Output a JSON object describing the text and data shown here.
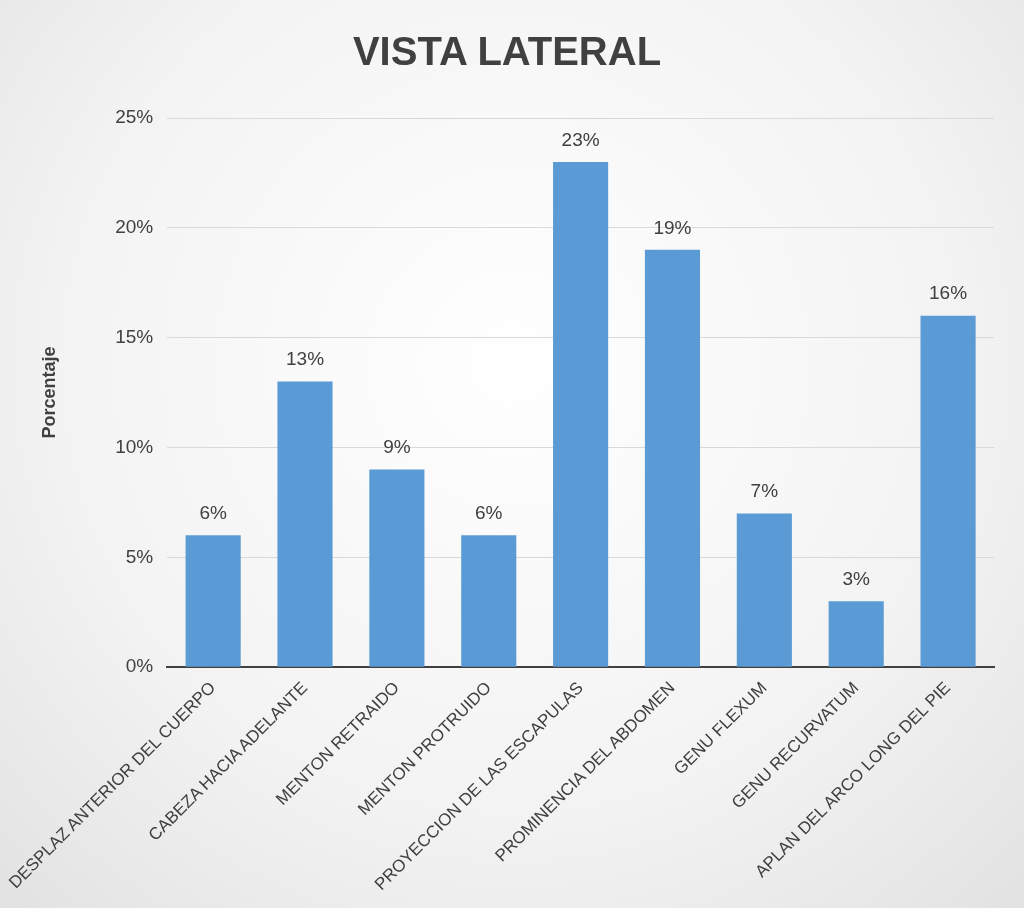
{
  "chart_data": {
    "type": "bar",
    "title": "VISTA LATERAL",
    "ylabel": "Porcentaje",
    "categories": [
      "DESPLAZ ANTERIOR DEL CUERPO",
      "CABEZA HACIA ADELANTE",
      "MENTON RETRAIDO",
      "MENTON PROTRUIDO",
      "PROYECCION DE LAS ESCAPULAS",
      "PROMINENCIA DEL ABDOMEN",
      "GENU FLEXUM",
      "GENU RECURVATUM",
      "APLAN DEL ARCO LONG DEL PIE"
    ],
    "values": [
      6,
      13,
      9,
      6,
      23,
      19,
      7,
      3,
      16
    ],
    "color": "#5b9bd5",
    "ylim": [
      0,
      25
    ],
    "yticks": [
      {
        "value": 0,
        "label": "0%"
      },
      {
        "value": 5,
        "label": "5%"
      },
      {
        "value": 10,
        "label": "10%"
      },
      {
        "value": 15,
        "label": "15%"
      },
      {
        "value": 20,
        "label": "20%"
      },
      {
        "value": 25,
        "label": "25%"
      }
    ],
    "value_labels": [
      "6%",
      "13%",
      "9%",
      "6%",
      "23%",
      "19%",
      "7%",
      "3%",
      "16%"
    ],
    "grid": "y",
    "legend": false
  }
}
